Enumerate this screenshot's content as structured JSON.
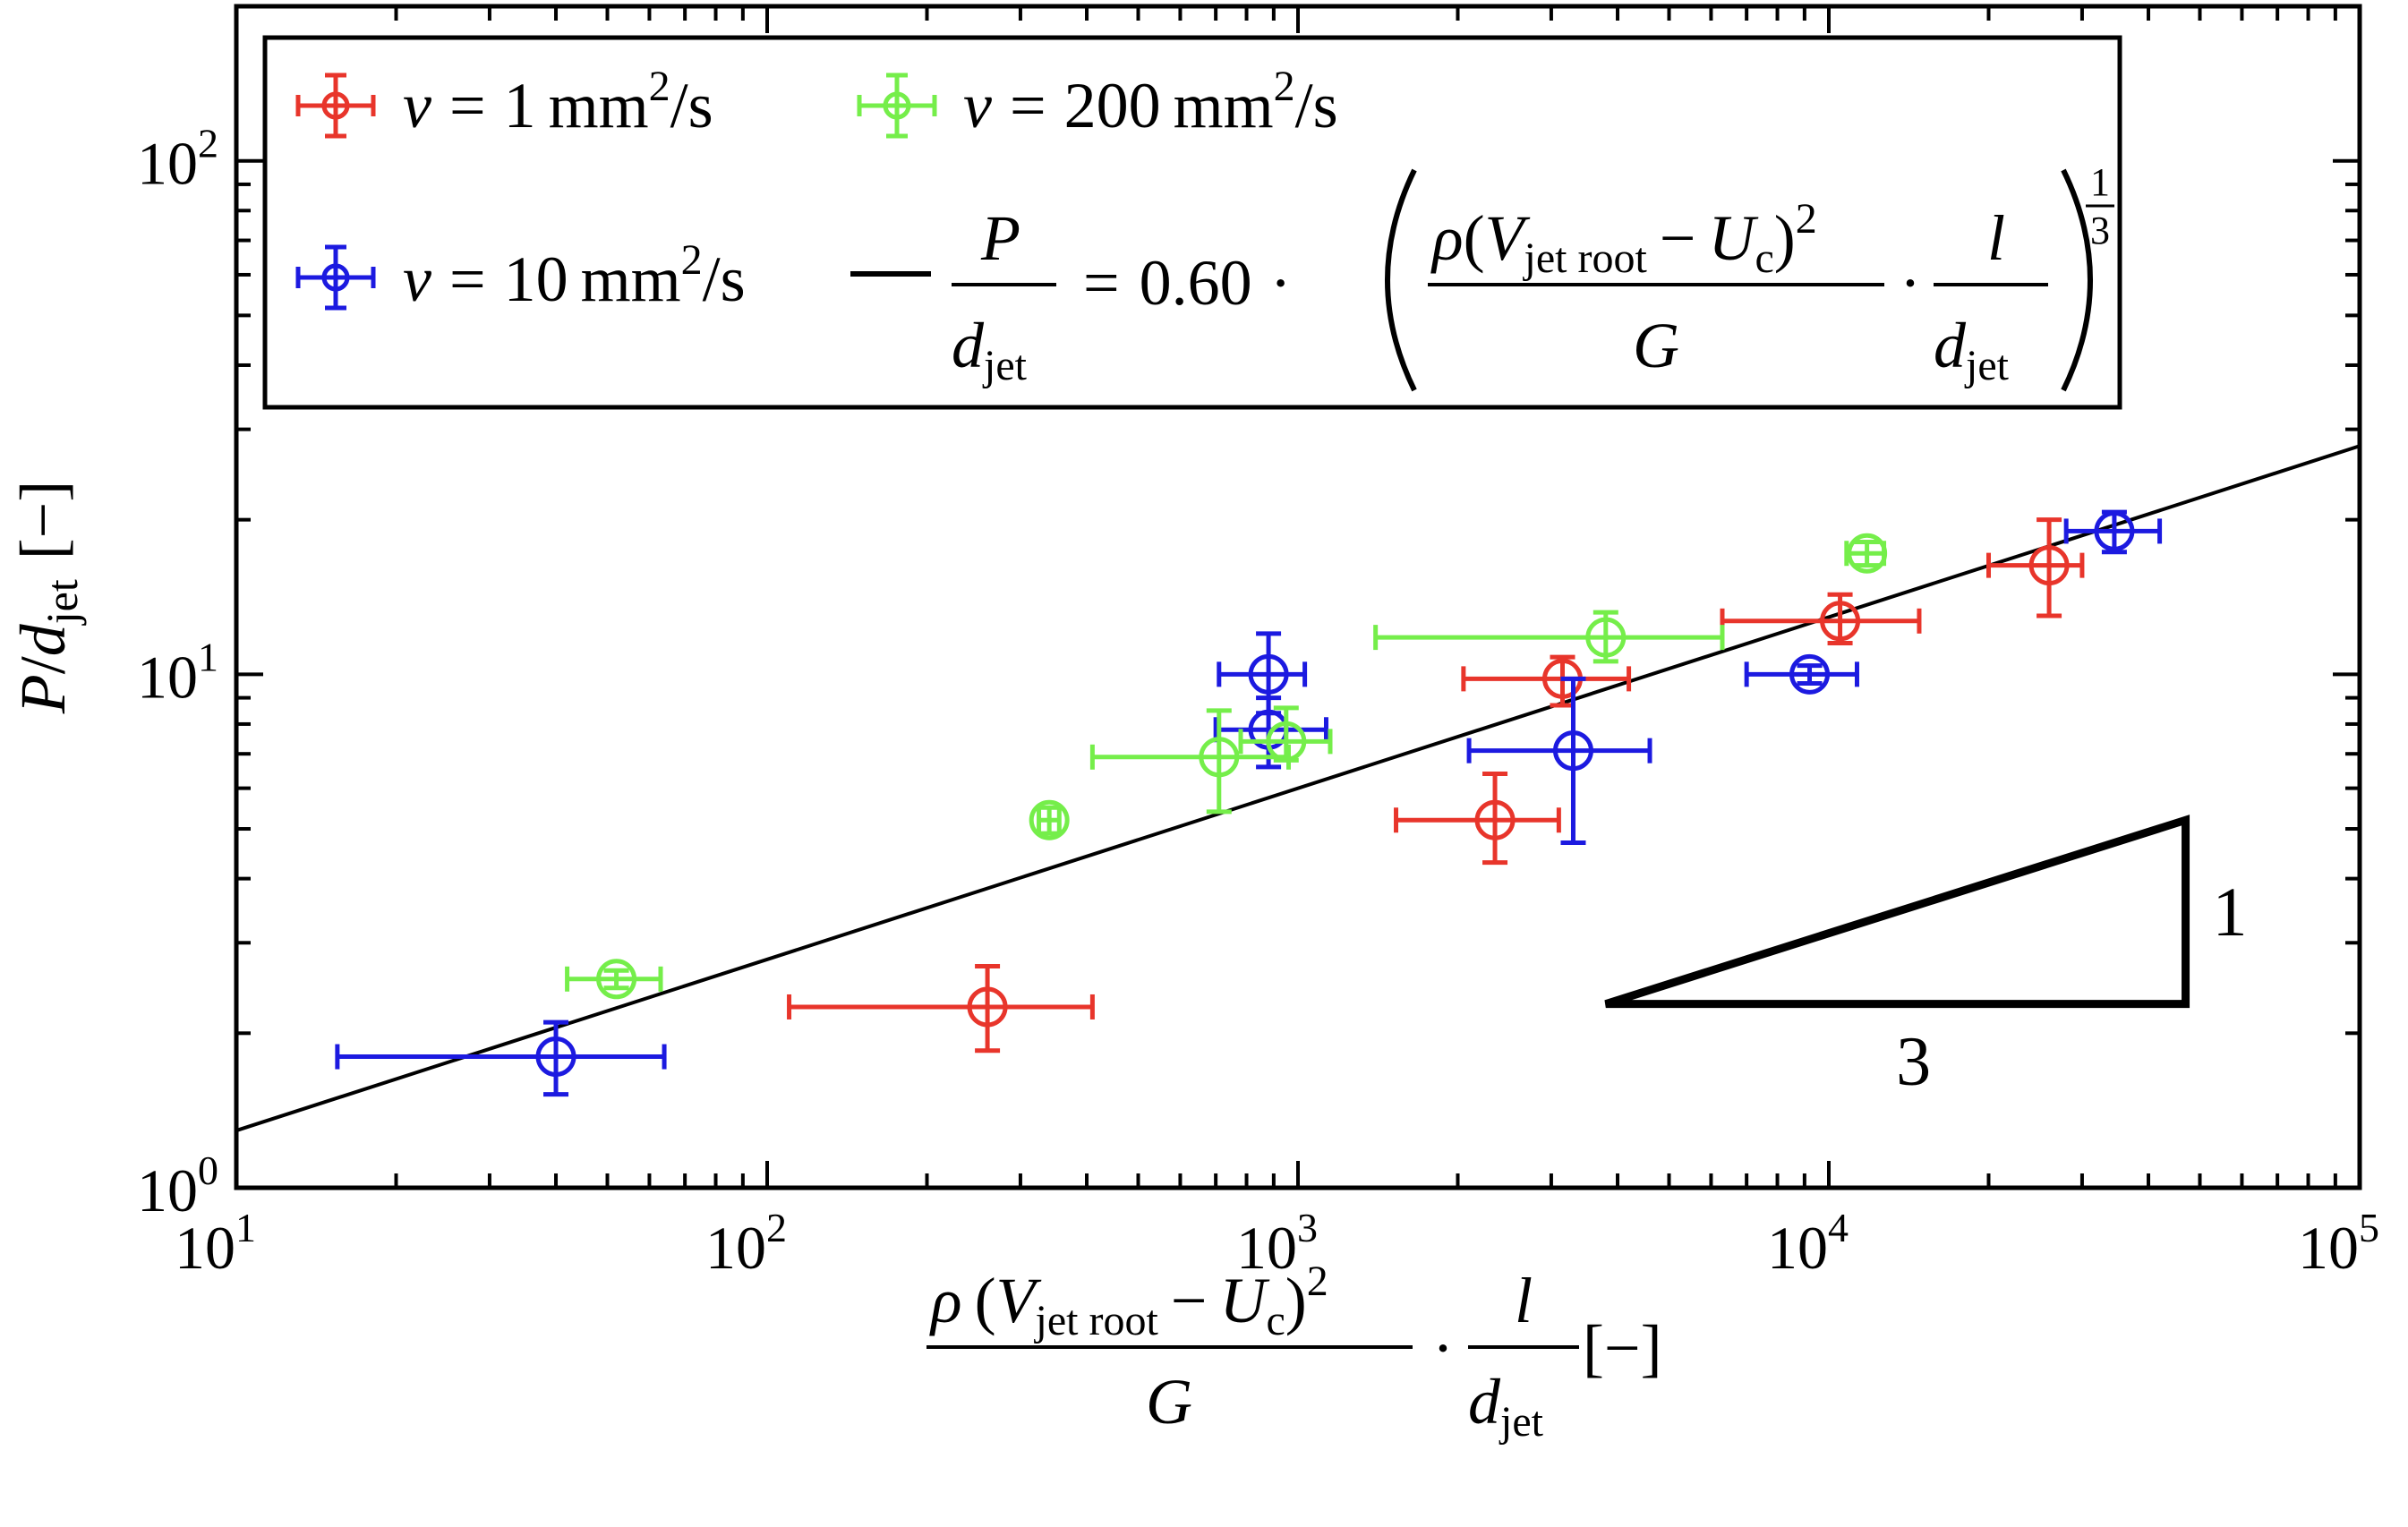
{
  "chart_data": {
    "type": "scatter",
    "x_scale": "log",
    "y_scale": "log",
    "xlim": [
      10,
      100000
    ],
    "ylim": [
      1,
      200
    ],
    "x_ticks": [
      10,
      100,
      1000,
      10000,
      100000
    ],
    "y_ticks": [
      1,
      10,
      100
    ],
    "x_tick_labels": [
      {
        "base": "10",
        "exp": "1"
      },
      {
        "base": "10",
        "exp": "2"
      },
      {
        "base": "10",
        "exp": "3"
      },
      {
        "base": "10",
        "exp": "4"
      },
      {
        "base": "10",
        "exp": "5"
      }
    ],
    "y_tick_labels": [
      {
        "base": "10",
        "exp": "0"
      },
      {
        "base": "10",
        "exp": "1"
      },
      {
        "base": "10",
        "exp": "2"
      }
    ],
    "xlabel": {
      "rho": "ρ",
      "open": "(",
      "V": "V",
      "V_sub": "jet root",
      "minus": "−",
      "U": "U",
      "U_sub": "c",
      "close": ")",
      "sq": "2",
      "G": "G",
      "dot": "·",
      "l": "l",
      "d": "d",
      "d_sub": "jet",
      "unit": "[−]"
    },
    "ylabel": {
      "P": "P",
      "slash": "/",
      "d": "d",
      "d_sub": "jet",
      "unit": "[−]"
    },
    "legend": {
      "placement": "top-left",
      "entries": {
        "nu1": {
          "nu": "ν",
          "eq": "=",
          "value": "1",
          "unit": "mm",
          "unit_exp": "2",
          "unit_rest": "/s"
        },
        "nu200": {
          "nu": "ν",
          "eq": "=",
          "value": "200",
          "unit": "mm",
          "unit_exp": "2",
          "unit_rest": "/s"
        },
        "nu10": {
          "nu": "ν",
          "eq": "=",
          "value": "10",
          "unit": "mm",
          "unit_exp": "2",
          "unit_rest": "/s"
        },
        "fit": {
          "P": "P",
          "d": "d",
          "d_sub": "jet",
          "eq": "=",
          "coef": "0.60",
          "dot": "·",
          "rho": "ρ",
          "V": "V",
          "V_sub": "jet root",
          "minus": "−",
          "U": "U",
          "U_sub": "c",
          "sq": "2",
          "G": "G",
          "l": "l",
          "exp_num": "1",
          "exp_den": "3"
        }
      }
    },
    "series": [
      {
        "id": "nu1",
        "color": "#e8352b",
        "points": [
          {
            "x": 260,
            "y": 2.25,
            "xerr": [
              110,
              410
            ],
            "yerr": [
              1.85,
              2.7
            ]
          },
          {
            "x": 2350,
            "y": 5.2,
            "xerr": [
              1530,
              3100
            ],
            "yerr": [
              4.3,
              6.4
            ]
          },
          {
            "x": 3150,
            "y": 9.8,
            "xerr": [
              2050,
              4200
            ],
            "yerr": [
              8.7,
              10.8
            ]
          },
          {
            "x": 10500,
            "y": 12.7,
            "xerr": [
              6300,
              14800
            ],
            "yerr": [
              11.5,
              14.3
            ]
          },
          {
            "x": 26000,
            "y": 16.3,
            "xerr": [
              20000,
              30000
            ],
            "yerr": [
              13.0,
              20.0
            ]
          }
        ]
      },
      {
        "id": "nu10",
        "color": "#1c1ae0",
        "points": [
          {
            "x": 40,
            "y": 1.8,
            "xerr": [
              15.5,
              64
            ],
            "yerr": [
              1.52,
              2.1
            ]
          },
          {
            "x": 880,
            "y": 10.0,
            "xerr": [
              710,
              1030
            ],
            "yerr": [
              8.4,
              12.0
            ]
          },
          {
            "x": 880,
            "y": 7.8,
            "xerr": [
              700,
              1130
            ],
            "yerr": [
              6.6,
              9.0
            ]
          },
          {
            "x": 3300,
            "y": 7.1,
            "xerr": [
              2100,
              4600
            ],
            "yerr": [
              4.7,
              9.8
            ]
          },
          {
            "x": 9200,
            "y": 10.0,
            "xerr": [
              7000,
              11300
            ],
            "yerr": [
              9.6,
              10.4
            ]
          },
          {
            "x": 34500,
            "y": 19.0,
            "xerr": [
              28000,
              42000
            ],
            "yerr": [
              17.3,
              20.7
            ]
          }
        ]
      },
      {
        "id": "nu200",
        "color": "#75ee4a",
        "points": [
          {
            "x": 52,
            "y": 2.55,
            "xerr": [
              42,
              63
            ],
            "yerr": [
              2.45,
              2.65
            ]
          },
          {
            "x": 340,
            "y": 5.2,
            "xerr": [
              325,
              355
            ],
            "yerr": [
              4.9,
              5.5
            ]
          },
          {
            "x": 710,
            "y": 6.9,
            "xerr": [
              410,
              960
            ],
            "yerr": [
              5.4,
              8.5
            ]
          },
          {
            "x": 950,
            "y": 7.4,
            "xerr": [
              780,
              1150
            ],
            "yerr": [
              6.8,
              8.6
            ]
          },
          {
            "x": 3800,
            "y": 11.8,
            "xerr": [
              1400,
              6300
            ],
            "yerr": [
              10.6,
              13.2
            ]
          },
          {
            "x": 11800,
            "y": 17.2,
            "xerr": [
              10800,
              12700
            ],
            "yerr": [
              16.3,
              18.1
            ]
          }
        ]
      }
    ],
    "fit_line": {
      "color": "#000000",
      "coef": 0.6,
      "exponent": 0.3333
    },
    "slope_triangle": {
      "color": "#000000",
      "x_start": 3800,
      "x_end": 47000,
      "y_base": 2.28,
      "y_top": 5.2,
      "label_rise": "1",
      "label_run": "3"
    }
  }
}
